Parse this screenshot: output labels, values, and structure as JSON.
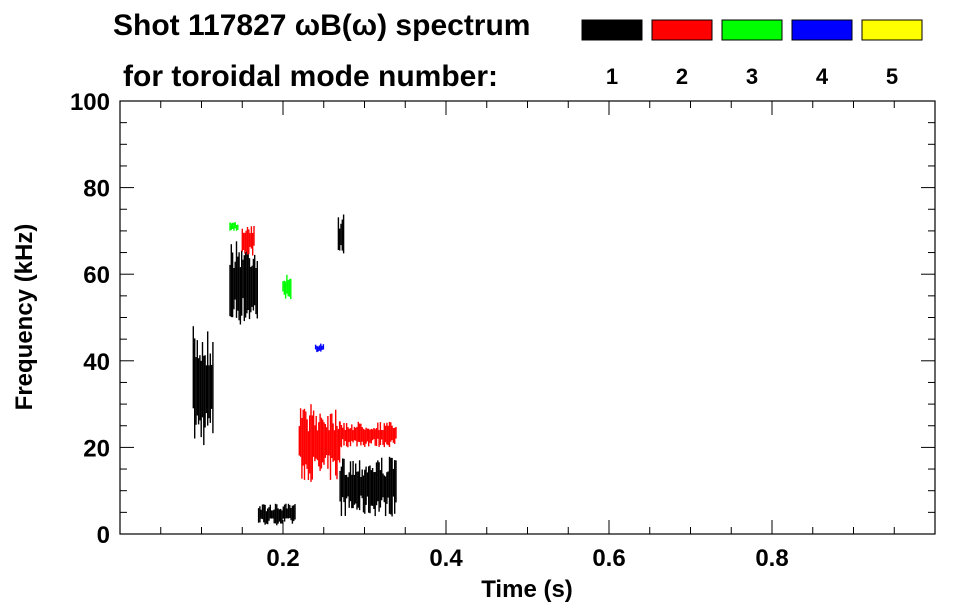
{
  "chart_data": {
    "type": "heatmap",
    "title_line1": "Shot 117827 ωB(ω) spectrum",
    "title_line2": "for toroidal mode number:",
    "xlabel": "Time (s)",
    "ylabel": "Frequency (kHz)",
    "xlim": [
      0.0,
      1.0
    ],
    "ylim": [
      0,
      100
    ],
    "x_ticks": [
      {
        "value": 0.2,
        "label": "0.2"
      },
      {
        "value": 0.4,
        "label": "0.4"
      },
      {
        "value": 0.6,
        "label": "0.6"
      },
      {
        "value": 0.8,
        "label": "0.8"
      }
    ],
    "y_ticks": [
      {
        "value": 0,
        "label": "0"
      },
      {
        "value": 20,
        "label": "20"
      },
      {
        "value": 40,
        "label": "40"
      },
      {
        "value": 60,
        "label": "60"
      },
      {
        "value": 80,
        "label": "80"
      },
      {
        "value": 100,
        "label": "100"
      }
    ],
    "legend": [
      {
        "mode": "1",
        "color": "#000000"
      },
      {
        "mode": "2",
        "color": "#ff0000"
      },
      {
        "mode": "3",
        "color": "#00ff00"
      },
      {
        "mode": "4",
        "color": "#0000ff"
      },
      {
        "mode": "5",
        "color": "#ffff00"
      }
    ],
    "regions": [
      {
        "mode": "1",
        "t": [
          0.09,
          0.115
        ],
        "f": [
          20,
          48
        ]
      },
      {
        "mode": "1",
        "t": [
          0.135,
          0.17
        ],
        "f": [
          48,
          68
        ]
      },
      {
        "mode": "1",
        "t": [
          0.17,
          0.215
        ],
        "f": [
          2,
          7
        ]
      },
      {
        "mode": "1",
        "t": [
          0.27,
          0.34
        ],
        "f": [
          4,
          18
        ]
      },
      {
        "mode": "1",
        "t": [
          0.268,
          0.275
        ],
        "f": [
          64,
          74
        ]
      },
      {
        "mode": "2",
        "t": [
          0.22,
          0.27
        ],
        "f": [
          12,
          30
        ]
      },
      {
        "mode": "2",
        "t": [
          0.15,
          0.165
        ],
        "f": [
          64,
          72
        ]
      },
      {
        "mode": "2",
        "t": [
          0.27,
          0.34
        ],
        "f": [
          20,
          26
        ]
      },
      {
        "mode": "3",
        "t": [
          0.2,
          0.21
        ],
        "f": [
          54,
          60
        ]
      },
      {
        "mode": "3",
        "t": [
          0.135,
          0.145
        ],
        "f": [
          70,
          72
        ]
      },
      {
        "mode": "4",
        "t": [
          0.24,
          0.25
        ],
        "f": [
          42,
          44
        ]
      }
    ]
  }
}
